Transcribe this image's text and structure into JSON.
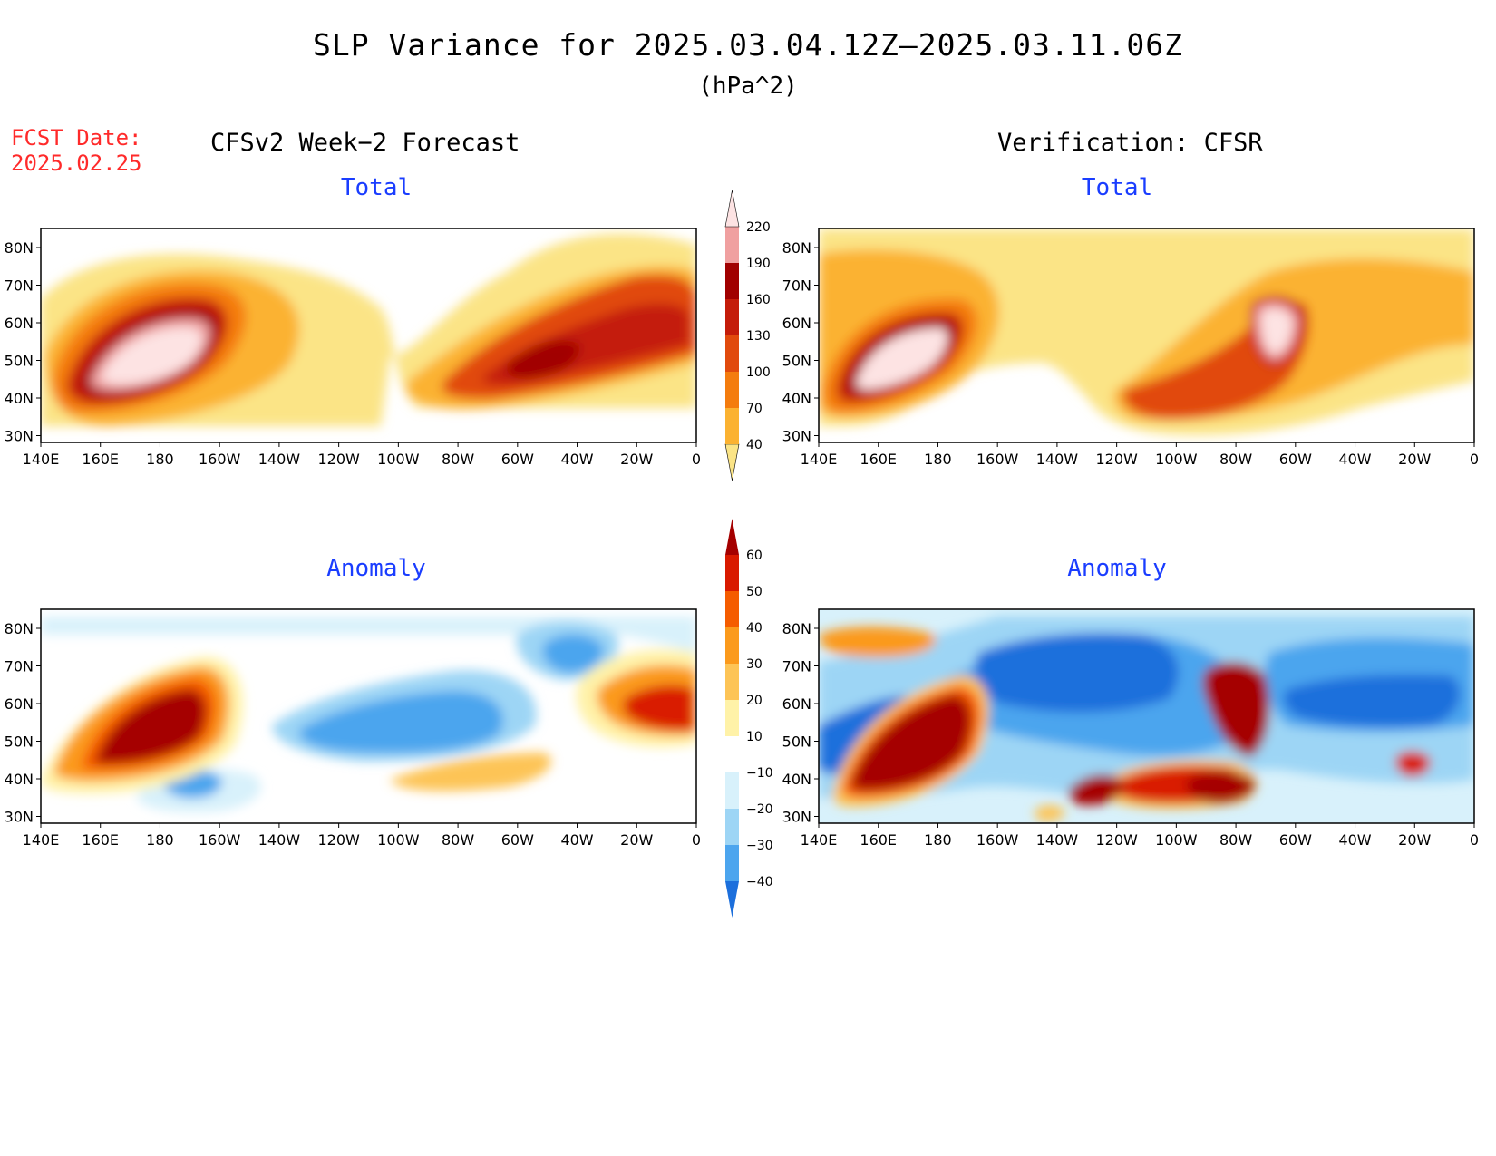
{
  "header": {
    "title": "SLP Variance for 2025.03.04.12Z—2025.03.11.06Z",
    "units": "(hPa^2)",
    "fcst_label_line1": "FCST Date:",
    "fcst_label_line2": "2025.02.25",
    "left_heading": "CFSv2 Week−2 Forecast",
    "right_heading": "Verification: CFSR"
  },
  "panels": {
    "left_total": {
      "subtitle": "Total"
    },
    "right_total": {
      "subtitle": "Total"
    },
    "left_anomaly": {
      "subtitle": "Anomaly"
    },
    "right_anomaly": {
      "subtitle": "Anomaly"
    }
  },
  "axes": {
    "lat_ticks": [
      "80N",
      "70N",
      "60N",
      "50N",
      "40N",
      "30N"
    ],
    "lon_ticks": [
      "140E",
      "160E",
      "180",
      "160W",
      "140W",
      "120W",
      "100W",
      "80W",
      "60W",
      "40W",
      "20W",
      "0"
    ]
  },
  "colorbars": {
    "total": {
      "levels": [
        "40",
        "70",
        "100",
        "130",
        "160",
        "190",
        "220"
      ],
      "colors": [
        "#fbe486",
        "#fbb231",
        "#f47c0e",
        "#e14a0d",
        "#c41c0a",
        "#a10000",
        "#f0a0a0",
        "#fde3e3"
      ]
    },
    "anomaly": {
      "levels": [
        "60",
        "50",
        "40",
        "30",
        "20",
        "10",
        "−10",
        "−20",
        "−30",
        "−40"
      ],
      "colors": [
        "#a50000",
        "#d91a00",
        "#f55c00",
        "#fb9a1c",
        "#fdc456",
        "#fff2a8",
        "#ffffff",
        "#d8f1fb",
        "#9dd5f5",
        "#4ca5ee",
        "#1c6fdc"
      ]
    }
  }
}
